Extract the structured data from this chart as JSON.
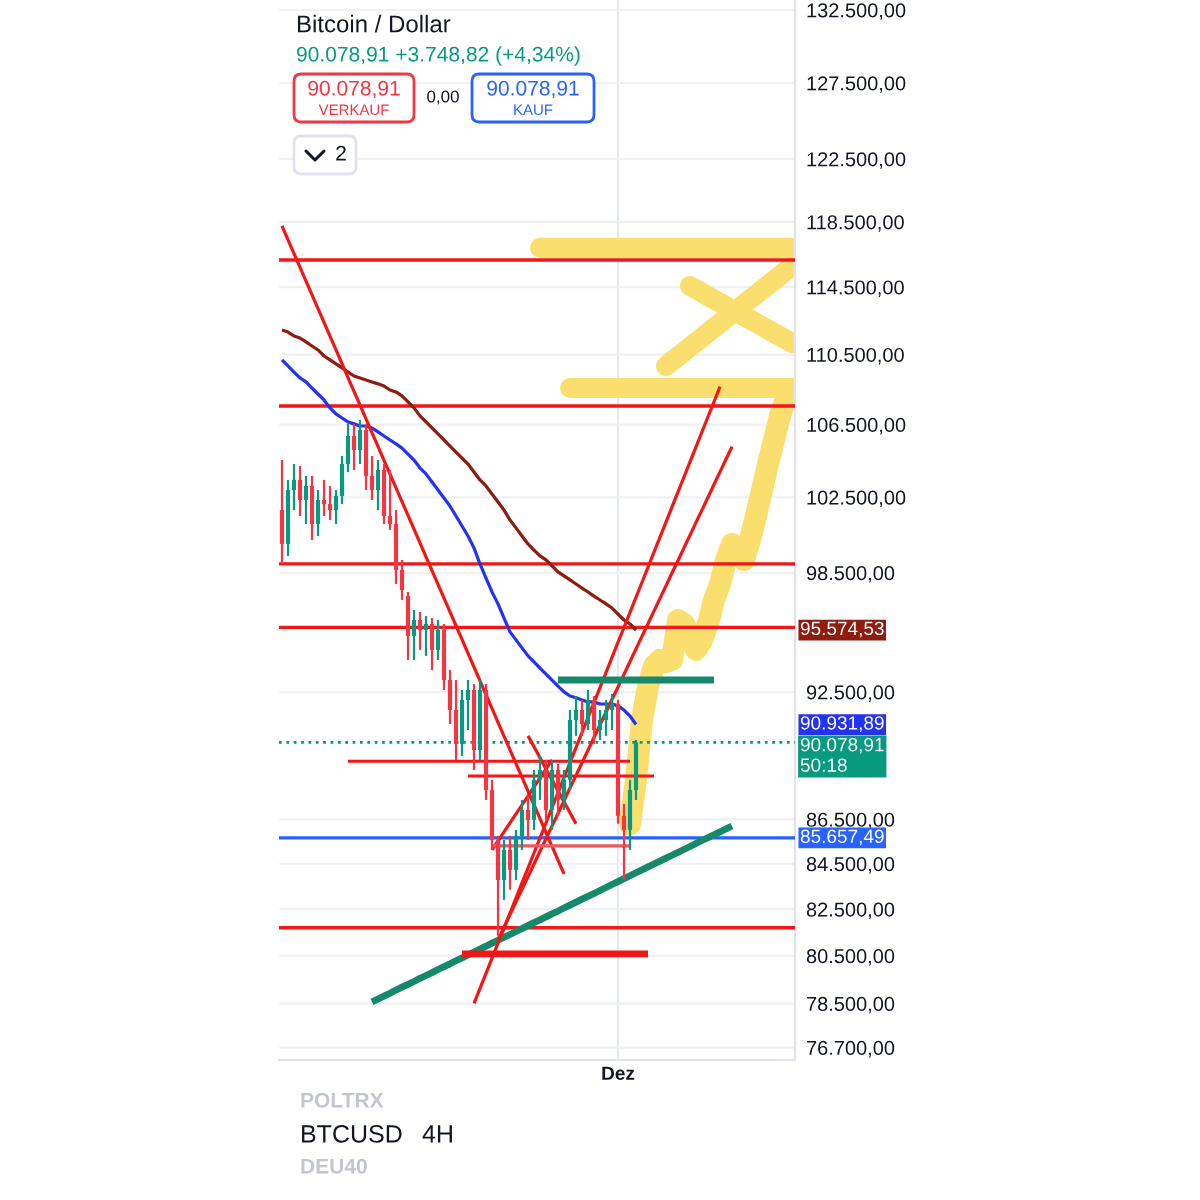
{
  "chart_data": {
    "type": "candlestick",
    "title": "Bitcoin / Dollar",
    "subtitle": "90.078,91 +3.748,82 (+4,34%)",
    "categories": [
      null,
      null,
      null,
      null,
      null,
      null,
      null,
      null,
      null,
      null,
      null,
      null,
      null,
      null,
      null,
      null,
      null,
      null,
      null,
      null,
      null,
      null,
      null,
      null,
      null,
      null,
      null,
      null,
      null,
      null,
      null,
      null,
      null,
      null,
      null,
      null,
      null,
      null,
      null,
      null,
      null,
      null,
      null,
      null,
      null,
      null,
      null,
      null,
      null,
      null,
      null,
      null,
      null,
      null,
      null,
      null,
      "Dez",
      null,
      null,
      null,
      null,
      null,
      null,
      null,
      null,
      null,
      null,
      null,
      null,
      null,
      null,
      null,
      null,
      null,
      null,
      null,
      null,
      null,
      null,
      null,
      null,
      null,
      null,
      null,
      null,
      null
    ],
    "ohlc": [
      [
        101810,
        104530,
        98960,
        100010
      ],
      [
        100010,
        103440,
        99380,
        102890
      ],
      [
        102890,
        104310,
        101810,
        103440
      ],
      [
        103440,
        104200,
        101490,
        102350
      ],
      [
        102350,
        103660,
        101070,
        103110
      ],
      [
        103110,
        103660,
        100220,
        101070
      ],
      [
        101070,
        102890,
        100430,
        102350
      ],
      [
        102350,
        103440,
        101490,
        102130
      ],
      [
        102130,
        103110,
        101280,
        101810
      ],
      [
        101810,
        102890,
        101070,
        102570
      ],
      [
        102570,
        104750,
        102130,
        104310
      ],
      [
        104310,
        106540,
        103870,
        105860
      ],
      [
        105860,
        106540,
        103980,
        105080
      ],
      [
        105080,
        106760,
        104310,
        106200
      ],
      [
        106200,
        106540,
        102890,
        103660
      ],
      [
        103660,
        104750,
        102350,
        102890
      ],
      [
        102890,
        104530,
        101810,
        103980
      ],
      [
        103980,
        104310,
        101070,
        101490
      ],
      [
        101490,
        103980,
        100750,
        101070
      ],
      [
        101070,
        101810,
        97920,
        98650
      ],
      [
        98650,
        99170,
        97100,
        97610
      ],
      [
        97300,
        97510,
        94080,
        95280
      ],
      [
        95280,
        96590,
        94080,
        96080
      ],
      [
        96080,
        96490,
        94580,
        95580
      ],
      [
        95580,
        96280,
        94280,
        95880
      ],
      [
        95880,
        96180,
        93580,
        94580
      ],
      [
        94580,
        96080,
        94080,
        95580
      ],
      [
        95580,
        95880,
        92600,
        93090
      ],
      [
        93090,
        93580,
        90960,
        91630
      ],
      [
        91630,
        93090,
        89250,
        90010
      ],
      [
        90010,
        92600,
        89440,
        92120
      ],
      [
        92120,
        93090,
        90670,
        92600
      ],
      [
        92600,
        92890,
        88780,
        89720
      ],
      [
        89720,
        93090,
        89250,
        92600
      ],
      [
        92600,
        92890,
        87390,
        87850
      ],
      [
        87850,
        88320,
        85120,
        85570
      ],
      [
        85570,
        85750,
        81350,
        83780
      ],
      [
        83780,
        85570,
        82910,
        85120
      ],
      [
        85120,
        85750,
        83350,
        84230
      ],
      [
        84230,
        86020,
        83780,
        85750
      ],
      [
        85750,
        87390,
        85120,
        86930
      ],
      [
        86930,
        87570,
        85570,
        86480
      ],
      [
        86480,
        88780,
        86020,
        88320
      ],
      [
        88320,
        89440,
        87390,
        88780
      ],
      [
        88780,
        89250,
        86480,
        86930
      ],
      [
        86930,
        89250,
        86020,
        88780
      ],
      [
        88780,
        89060,
        86660,
        87390
      ],
      [
        87390,
        88780,
        86930,
        88320
      ],
      [
        88320,
        91630,
        87850,
        91150
      ],
      [
        91150,
        92310,
        90390,
        91630
      ],
      [
        91630,
        92120,
        90390,
        90960
      ],
      [
        90960,
        92600,
        90670,
        92120
      ],
      [
        92120,
        92310,
        90010,
        90670
      ],
      [
        90670,
        91630,
        90200,
        91150
      ],
      [
        91150,
        92120,
        90390,
        91630
      ],
      [
        91630,
        92410,
        90670,
        91920
      ],
      [
        91920,
        92120,
        86300,
        86660
      ],
      [
        86660,
        87210,
        83780,
        86020
      ],
      [
        86020,
        88320,
        85120,
        87850
      ],
      [
        87850,
        90200,
        87390,
        90078.91
      ],
      null,
      null,
      null,
      null,
      null,
      null,
      null,
      null,
      null,
      null,
      null,
      null,
      null,
      null,
      null,
      null,
      null,
      null,
      null,
      null,
      null,
      null,
      null,
      null,
      null,
      null
    ],
    "series": [
      {
        "type": "line",
        "color": "#2433f2",
        "values": [
          110190,
          109840,
          109490,
          109150,
          108920,
          108570,
          108230,
          107890,
          107440,
          107100,
          106870,
          106650,
          106540,
          106420,
          106420,
          106310,
          106090,
          105860,
          105640,
          105420,
          105190,
          104860,
          104530,
          104090,
          103770,
          103330,
          102890,
          102460,
          102020,
          101490,
          100960,
          100430,
          99800,
          98960,
          98230,
          97510,
          96900,
          96180,
          95480,
          95080,
          94680,
          94280,
          93980,
          93680,
          93380,
          93090,
          92790,
          92510,
          92310,
          92220,
          92120,
          92020,
          92020,
          91920,
          91920,
          91920,
          91830,
          91630,
          91340,
          90931.89,
          null,
          null,
          null,
          null,
          null,
          null,
          null,
          null,
          null,
          null,
          null,
          null,
          null,
          null,
          null,
          null,
          null,
          null,
          null,
          null,
          null,
          null,
          null,
          null,
          null,
          null
        ]
      },
      {
        "type": "line",
        "color": "#8e1c0f",
        "values": [
          111940,
          111820,
          111590,
          111470,
          111240,
          111000,
          110770,
          110420,
          110190,
          109960,
          109730,
          109490,
          109260,
          109150,
          109030,
          108920,
          108810,
          108690,
          108460,
          108350,
          108120,
          107780,
          107440,
          106990,
          106650,
          106310,
          105980,
          105640,
          105300,
          104970,
          104640,
          104310,
          103870,
          103440,
          103110,
          102680,
          102240,
          101810,
          101280,
          100860,
          100430,
          100010,
          99690,
          99380,
          99170,
          98860,
          98550,
          98340,
          98130,
          97920,
          97710,
          97510,
          97300,
          97100,
          96900,
          96690,
          96380,
          96080,
          95880,
          95574.53,
          null,
          null,
          null,
          null,
          null,
          null,
          null,
          null,
          null,
          null,
          null,
          null,
          null,
          null,
          null,
          null,
          null,
          null,
          null,
          null,
          null,
          null,
          null,
          null,
          null,
          null
        ]
      },
      {
        "type": "line",
        "color": "#f21616",
        "values": [
          118250,
          117390,
          116540,
          115700,
          114860,
          114030,
          113210,
          112390,
          111580,
          110770,
          109970,
          109170,
          108380,
          107600,
          106820,
          106040,
          105280,
          104510,
          103760,
          103010,
          102260,
          101520,
          100790,
          100060,
          99330,
          98610,
          97900,
          97190,
          96490,
          95790,
          95100,
          94410,
          93730,
          93050,
          92370,
          91710,
          91040,
          90380,
          89730,
          89080,
          88440,
          87800,
          87160,
          86530,
          85900,
          85280,
          84660,
          84050,
          null,
          null,
          null,
          null,
          null,
          null,
          null,
          null,
          null,
          null,
          null,
          null,
          null,
          null,
          null,
          null,
          null,
          null,
          null,
          null,
          null,
          null,
          null,
          null,
          null,
          null,
          null,
          null,
          null,
          null,
          null,
          null,
          null,
          null,
          null,
          null,
          null,
          null
        ]
      },
      {
        "type": "line",
        "color": "#17896b",
        "values": [
          null,
          null,
          null,
          null,
          null,
          null,
          null,
          null,
          null,
          null,
          null,
          null,
          null,
          null,
          null,
          78570,
          78690,
          78810,
          78930,
          79060,
          79180,
          79300,
          79420,
          79550,
          79670,
          79790,
          79920,
          80040,
          80160,
          80290,
          80410,
          80540,
          80660,
          80790,
          80910,
          81040,
          81160,
          81290,
          81410,
          81540,
          81660,
          81790,
          81920,
          82040,
          82170,
          82300,
          82420,
          82550,
          82680,
          82810,
          82940,
          83060,
          83190,
          83320,
          83450,
          83580,
          83710,
          83840,
          83970,
          84100,
          84230,
          84360,
          84490,
          84620,
          84750,
          84880,
          85010,
          85140,
          85270,
          85410,
          85540,
          85670,
          85800,
          85930,
          86070,
          86200,
          null,
          null,
          null,
          null,
          null,
          null,
          null,
          null,
          null,
          null
        ]
      },
      {
        "type": "line",
        "color": "#f21616",
        "values": [
          null,
          null,
          null,
          null,
          null,
          null,
          null,
          null,
          null,
          null,
          null,
          null,
          null,
          null,
          null,
          null,
          null,
          null,
          null,
          null,
          null,
          null,
          null,
          null,
          null,
          null,
          null,
          null,
          null,
          null,
          null,
          null,
          78510,
          79130,
          79760,
          80400,
          81040,
          81680,
          82330,
          82990,
          83650,
          84310,
          84980,
          85660,
          86340,
          87030,
          87720,
          88420,
          89120,
          89830,
          90550,
          91270,
          91990,
          92720,
          93460,
          94210,
          94960,
          95710,
          96470,
          97240,
          98010,
          98790,
          99580,
          100370,
          101170,
          101980,
          102790,
          103600,
          104430,
          105260,
          106100,
          106940,
          107790,
          108650,
          null,
          null,
          null,
          null,
          null,
          null,
          null,
          null,
          null,
          null,
          null,
          null
        ]
      },
      {
        "type": "line",
        "color": "#f21616",
        "values": [
          null,
          null,
          null,
          null,
          null,
          null,
          null,
          null,
          null,
          null,
          null,
          null,
          null,
          null,
          null,
          null,
          null,
          null,
          null,
          null,
          null,
          null,
          null,
          null,
          null,
          null,
          null,
          null,
          null,
          null,
          null,
          null,
          null,
          null,
          null,
          null,
          81180,
          81720,
          82270,
          82820,
          83370,
          83930,
          84490,
          85060,
          85620,
          86200,
          86770,
          87350,
          87940,
          88530,
          89120,
          89710,
          90310,
          90920,
          91520,
          92140,
          92750,
          93370,
          94000,
          94630,
          95260,
          95890,
          96540,
          97180,
          97830,
          98490,
          99140,
          99810,
          100470,
          101150,
          101820,
          102500,
          103190,
          103880,
          104570,
          105270,
          null,
          null,
          null,
          null,
          null,
          null,
          null,
          null,
          null,
          null
        ]
      },
      {
        "type": "line",
        "color": "#f21616",
        "values": [
          null,
          null,
          null,
          null,
          null,
          null,
          null,
          null,
          null,
          null,
          null,
          null,
          null,
          null,
          null,
          null,
          null,
          null,
          null,
          null,
          null,
          null,
          null,
          null,
          null,
          null,
          null,
          null,
          null,
          null,
          null,
          null,
          null,
          null,
          null,
          null,
          null,
          null,
          null,
          null,
          null,
          90390,
          89870,
          89350,
          88830,
          88320,
          87810,
          87310,
          86800,
          86300,
          null,
          null,
          null,
          null,
          null,
          null,
          null,
          null,
          null,
          null,
          null,
          null,
          null,
          null,
          null,
          null,
          null,
          null,
          null,
          null,
          null,
          null,
          null,
          null,
          null,
          null,
          null,
          null,
          null,
          null,
          null,
          null,
          null,
          null,
          null,
          null
        ]
      },
      {
        "type": "line",
        "color": "#f21616",
        "values": [
          null,
          null,
          null,
          null,
          null,
          null,
          null,
          null,
          null,
          null,
          null,
          null,
          null,
          null,
          null,
          null,
          null,
          null,
          null,
          null,
          null,
          null,
          null,
          null,
          null,
          null,
          null,
          null,
          null,
          null,
          null,
          null,
          null,
          null,
          null,
          85120,
          85520,
          85930,
          86340,
          86750,
          87160,
          87570,
          87990,
          88410,
          88830,
          89250,
          null,
          null,
          null,
          null,
          null,
          null,
          null,
          null,
          null,
          null,
          null,
          null,
          null,
          null,
          null,
          null,
          null,
          null,
          null,
          null,
          null,
          null,
          null,
          null,
          null,
          null,
          null,
          null,
          null,
          null,
          null,
          null,
          null,
          null,
          null,
          null,
          null,
          null,
          null,
          null
        ]
      },
      {
        "type": "line",
        "color": "#f21616",
        "values": [
          null,
          null,
          null,
          null,
          null,
          null,
          null,
          null,
          null,
          null,
          null,
          89190,
          89190,
          89190,
          89190,
          89190,
          89190,
          89190,
          89190,
          89190,
          89190,
          89190,
          89190,
          89190,
          89190,
          89190,
          89190,
          89190,
          89190,
          89190,
          89190,
          89190,
          89190,
          89190,
          89190,
          89190,
          89190,
          89190,
          89190,
          89190,
          89190,
          89190,
          89190,
          89190,
          89190,
          89190,
          89190,
          89190,
          89190,
          89190,
          89190,
          89190,
          89190,
          89190,
          89190,
          89190,
          89190,
          89190,
          89190,
          null,
          null,
          null,
          null,
          null,
          null,
          null,
          null,
          null,
          null,
          null,
          null,
          null,
          null,
          null,
          null,
          null,
          null,
          null,
          null,
          null,
          null,
          null,
          null,
          null,
          null,
          null
        ]
      },
      {
        "type": "line",
        "color": "#f21616",
        "values": [
          null,
          null,
          null,
          null,
          null,
          null,
          null,
          null,
          null,
          null,
          null,
          null,
          null,
          null,
          null,
          null,
          null,
          null,
          null,
          null,
          null,
          null,
          null,
          null,
          null,
          null,
          null,
          null,
          null,
          null,
          null,
          88500,
          88500,
          88500,
          88500,
          88500,
          88500,
          88500,
          88500,
          88500,
          88500,
          88500,
          88500,
          88500,
          88500,
          88500,
          88500,
          88500,
          88500,
          88500,
          88500,
          88500,
          88500,
          88500,
          88500,
          88500,
          88500,
          88500,
          88500,
          88500,
          88500,
          88500,
          88500,
          null,
          null,
          null,
          null,
          null,
          null,
          null,
          null,
          null,
          null,
          null,
          null,
          null,
          null,
          null,
          null,
          null,
          null,
          null,
          null,
          null,
          null,
          null
        ]
      },
      {
        "type": "line",
        "color": "#f21616",
        "values": [
          null,
          null,
          null,
          null,
          null,
          null,
          null,
          null,
          null,
          null,
          null,
          null,
          null,
          null,
          null,
          null,
          null,
          null,
          null,
          null,
          null,
          null,
          null,
          null,
          null,
          null,
          null,
          null,
          null,
          null,
          80580,
          80580,
          80580,
          80580,
          80580,
          80580,
          80580,
          80580,
          80580,
          80580,
          80580,
          80580,
          80580,
          80580,
          80580,
          80580,
          80580,
          80580,
          80580,
          80580,
          80580,
          80580,
          80580,
          80580,
          80580,
          80580,
          80580,
          80580,
          80580,
          80580,
          80580,
          80580,
          null,
          null,
          null,
          null,
          null,
          null,
          null,
          null,
          null,
          null,
          null,
          null,
          null,
          null,
          null,
          null,
          null,
          null,
          null,
          null,
          null,
          null,
          null,
          null
        ]
      },
      {
        "type": "line",
        "color": "#17896b",
        "values": [
          null,
          null,
          null,
          null,
          null,
          null,
          null,
          null,
          null,
          null,
          null,
          null,
          null,
          null,
          null,
          null,
          null,
          null,
          null,
          null,
          null,
          null,
          null,
          null,
          null,
          null,
          null,
          null,
          null,
          null,
          null,
          null,
          null,
          null,
          null,
          null,
          null,
          null,
          null,
          null,
          null,
          null,
          null,
          null,
          null,
          null,
          93090,
          93090,
          93090,
          93090,
          93090,
          93090,
          93090,
          93090,
          93090,
          93090,
          93090,
          93090,
          93090,
          93090,
          93090,
          93090,
          93090,
          93090,
          93090,
          93090,
          93090,
          93090,
          93090,
          93090,
          93090,
          93090,
          93090,
          null,
          null,
          null,
          null,
          null,
          null,
          null,
          null,
          null,
          null,
          null,
          null,
          null
        ]
      },
      {
        "type": "line",
        "color": "#f0585f",
        "values": [
          null,
          null,
          null,
          null,
          null,
          null,
          null,
          null,
          null,
          null,
          null,
          null,
          null,
          null,
          null,
          null,
          null,
          null,
          null,
          null,
          null,
          null,
          null,
          null,
          null,
          null,
          null,
          null,
          null,
          null,
          null,
          null,
          null,
          null,
          null,
          85300,
          85300,
          85300,
          85300,
          85300,
          85300,
          85300,
          85300,
          85300,
          85300,
          85300,
          85300,
          85300,
          85300,
          85300,
          85300,
          85300,
          85300,
          85300,
          85300,
          85300,
          85300,
          85300,
          85300,
          null,
          null,
          null,
          null,
          null,
          null,
          null,
          null,
          null,
          null,
          null,
          null,
          null,
          null,
          null,
          null,
          null,
          null,
          null,
          null,
          null,
          null,
          null,
          null,
          null,
          null,
          null
        ]
      },
      {
        "type": "line",
        "color": "#fbdf6e",
        "values": [
          null,
          null,
          null,
          null,
          null,
          null,
          null,
          null,
          null,
          null,
          null,
          null,
          null,
          null,
          null,
          null,
          null,
          null,
          null,
          null,
          null,
          null,
          null,
          null,
          null,
          null,
          null,
          null,
          null,
          null,
          null,
          null,
          null,
          null,
          null,
          null,
          null,
          null,
          null,
          null,
          null,
          null,
          null,
          116900,
          116900,
          116900,
          116900,
          116900,
          116900,
          116900,
          116900,
          116900,
          116900,
          116900,
          116900,
          116900,
          116900,
          116900,
          116900,
          116900,
          116900,
          116900,
          116900,
          116900,
          116900,
          116900,
          116900,
          116900,
          116900,
          116900,
          116900,
          116900,
          116900,
          116900,
          116900,
          116900,
          116900,
          116900,
          116900,
          116900,
          116900,
          116900,
          116900,
          116900,
          116900,
          116900
        ]
      },
      {
        "type": "line",
        "color": "#fbdf6e",
        "values": [
          null,
          null,
          null,
          null,
          null,
          null,
          null,
          null,
          null,
          null,
          null,
          null,
          null,
          null,
          null,
          null,
          null,
          null,
          null,
          null,
          null,
          null,
          null,
          null,
          null,
          null,
          null,
          null,
          null,
          null,
          null,
          null,
          null,
          null,
          null,
          null,
          null,
          null,
          null,
          null,
          null,
          null,
          null,
          null,
          null,
          null,
          null,
          null,
          108570,
          108570,
          108570,
          108570,
          108570,
          108570,
          108570,
          108570,
          108570,
          108570,
          108570,
          108570,
          108570,
          108570,
          108570,
          108570,
          108570,
          108570,
          108570,
          108570,
          108570,
          108570,
          108570,
          108570,
          108570,
          108570,
          108570,
          108570,
          108570,
          108570,
          108570,
          108570,
          108570,
          108570,
          108570,
          108570,
          108570,
          108570
        ]
      },
      {
        "type": "line",
        "color": "#fbdf6e",
        "values": [
          null,
          null,
          null,
          null,
          null,
          null,
          null,
          null,
          null,
          null,
          null,
          null,
          null,
          null,
          null,
          null,
          null,
          null,
          null,
          null,
          null,
          null,
          null,
          null,
          null,
          null,
          null,
          null,
          null,
          null,
          null,
          null,
          null,
          null,
          null,
          null,
          null,
          null,
          null,
          null,
          null,
          null,
          null,
          null,
          null,
          null,
          null,
          null,
          null,
          null,
          null,
          null,
          null,
          null,
          null,
          null,
          null,
          null,
          null,
          null,
          null,
          null,
          null,
          null,
          null,
          null,
          null,
          null,
          114570,
          114370,
          114170,
          113960,
          113760,
          113560,
          113360,
          113160,
          112960,
          112760,
          112560,
          112370,
          112170,
          111970,
          111770,
          111570,
          111380,
          111180
        ]
      },
      {
        "type": "line",
        "color": "#fbdf6e",
        "values": [
          null,
          null,
          null,
          null,
          null,
          null,
          null,
          null,
          null,
          null,
          null,
          null,
          null,
          null,
          null,
          null,
          null,
          null,
          null,
          null,
          null,
          null,
          null,
          null,
          null,
          null,
          null,
          null,
          null,
          null,
          null,
          null,
          null,
          null,
          null,
          null,
          null,
          null,
          null,
          null,
          null,
          null,
          null,
          null,
          null,
          null,
          null,
          null,
          null,
          null,
          null,
          null,
          null,
          null,
          null,
          null,
          null,
          null,
          null,
          null,
          null,
          null,
          null,
          null,
          109840,
          110120,
          110390,
          110670,
          110950,
          111230,
          111510,
          111790,
          112070,
          112350,
          112630,
          112910,
          113200,
          113480,
          113770,
          114050,
          114340,
          114620,
          114910,
          115200,
          115490,
          115780
        ]
      },
      {
        "type": "line",
        "color": "#fbdf6e",
        "values": [
          null,
          null,
          null,
          null,
          null,
          null,
          null,
          null,
          null,
          null,
          null,
          null,
          null,
          null,
          null,
          null,
          null,
          null,
          null,
          null,
          null,
          null,
          null,
          null,
          null,
          null,
          null,
          null,
          null,
          null,
          null,
          null,
          null,
          null,
          null,
          null,
          null,
          null,
          null,
          null,
          null,
          null,
          null,
          null,
          null,
          null,
          null,
          null,
          null,
          null,
          null,
          null,
          null,
          null,
          null,
          null,
          null,
          null,
          86290,
          88320,
          91150,
          92790,
          93780,
          94080,
          93980,
          94080,
          96080,
          95880,
          95280,
          94580,
          95080,
          95880,
          97100,
          97920,
          99170,
          100010,
          99690,
          99170,
          100220,
          101490,
          102890,
          104310,
          105640,
          106990,
          108000,
          108350
        ]
      }
    ],
    "ref_lines": [
      {
        "axis": "y",
        "value": 116150,
        "color": "#f21616"
      },
      {
        "axis": "y",
        "value": 107550,
        "color": "#f21616"
      },
      {
        "axis": "y",
        "value": 98960,
        "color": "#f21616"
      },
      {
        "axis": "y",
        "value": 95710,
        "color": "#f21616"
      },
      {
        "axis": "y",
        "value": 81700,
        "color": "#f21616"
      },
      {
        "axis": "y",
        "value": 85657.49,
        "label": "85.657,49",
        "color": "#2962ff"
      },
      {
        "axis": "y",
        "value": 90078.91,
        "label": "90.078,91\n50:18",
        "color": "#089981",
        "line_style": "dotted"
      }
    ],
    "annotations": [
      "90.078,91",
      "VERKAUF",
      "0,00",
      "90.078,91",
      "KAUF",
      "2",
      "POLTRX",
      "BTCUSD",
      "4H",
      "DEU40",
      "95.574,53",
      "90.931,89"
    ],
    "log": true,
    "ylim": [
      76200,
      133200
    ],
    "yticks": [
      {
        "value": 132500,
        "label": "132.500,00"
      },
      {
        "value": 127500,
        "label": "127.500,00"
      },
      {
        "value": 122500,
        "label": "122.500,00"
      },
      {
        "value": 118500,
        "label": "118.500,00"
      },
      {
        "value": 114500,
        "label": "114.500,00"
      },
      {
        "value": 110500,
        "label": "110.500,00"
      },
      {
        "value": 106500,
        "label": "106.500,00"
      },
      {
        "value": 102500,
        "label": "102.500,00"
      },
      {
        "value": 98500,
        "label": "98.500,00"
      },
      {
        "value": 92500,
        "label": "92.500,00"
      },
      {
        "value": 86500,
        "label": "86.500,00"
      },
      {
        "value": 84500,
        "label": "84.500,00"
      },
      {
        "value": 82500,
        "label": "82.500,00"
      },
      {
        "value": 80500,
        "label": "80.500,00"
      },
      {
        "value": 78500,
        "label": "78.500,00"
      },
      {
        "value": 76700,
        "label": "76.700,00"
      }
    ],
    "grid": true
  }
}
